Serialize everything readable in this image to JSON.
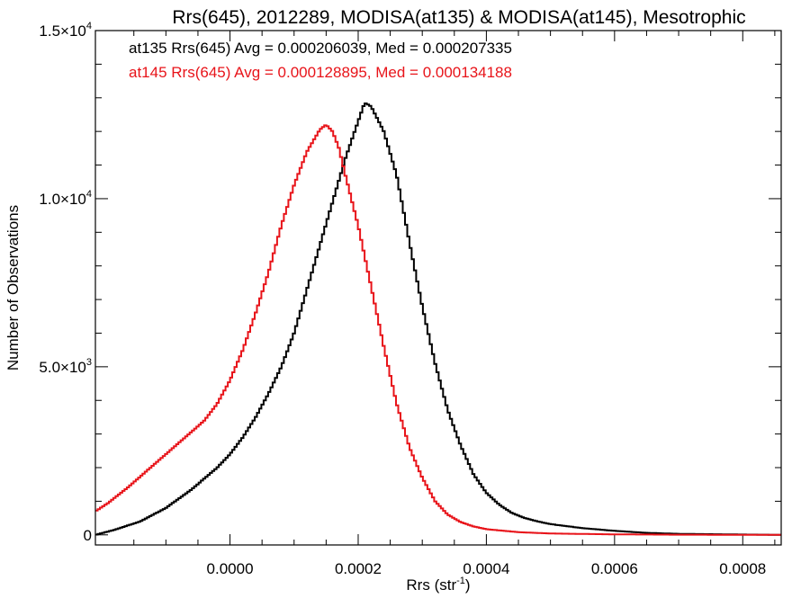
{
  "chart_data": {
    "type": "histogram",
    "title": "Rrs(645), 2012289, MODISA(at135) & MODISA(at145), Mesotrophic",
    "xlabel": "Rrs (str",
    "xlabel_sup": "-1",
    "xlabel_close": ")",
    "ylabel": "Number of Observations",
    "xlim": [
      -0.00021,
      0.00086
    ],
    "ylim": [
      -300,
      15000
    ],
    "x_ticks": [
      {
        "value": 0.0,
        "label": "0.0000"
      },
      {
        "value": 0.0002,
        "label": "0.0002"
      },
      {
        "value": 0.0004,
        "label": "0.0004"
      },
      {
        "value": 0.0006,
        "label": "0.0006"
      },
      {
        "value": 0.0008,
        "label": "0.0008"
      }
    ],
    "y_ticks": [
      {
        "value": 0,
        "mant": "0",
        "exp": ""
      },
      {
        "value": 5000,
        "mant": "5.0×10",
        "exp": "3"
      },
      {
        "value": 10000,
        "mant": "1.0×10",
        "exp": "4"
      },
      {
        "value": 15000,
        "mant": "1.5×10",
        "exp": "4"
      }
    ],
    "legend": [
      {
        "text": "at135 Rrs(645) Avg = 0.000206039, Med = 0.000207335",
        "color": "#000000"
      },
      {
        "text": "at145 Rrs(645) Avg = 0.000128895, Med = 0.000134188",
        "color": "#e8141a"
      }
    ],
    "series": [
      {
        "name": "at135",
        "color": "#000000",
        "points": [
          [
            -0.00021,
            0
          ],
          [
            -0.00018,
            150
          ],
          [
            -0.00014,
            400
          ],
          [
            -0.0001,
            800
          ],
          [
            -6e-05,
            1350
          ],
          [
            -2e-05,
            2000
          ],
          [
            0.0,
            2400
          ],
          [
            2e-05,
            2900
          ],
          [
            4e-05,
            3500
          ],
          [
            6e-05,
            4200
          ],
          [
            8e-05,
            5000
          ],
          [
            0.0001,
            6000
          ],
          [
            0.00012,
            7300
          ],
          [
            0.00014,
            8600
          ],
          [
            0.00016,
            9900
          ],
          [
            0.00018,
            11200
          ],
          [
            0.0002,
            12300
          ],
          [
            0.00021,
            12850
          ],
          [
            0.00022,
            12750
          ],
          [
            0.00024,
            12000
          ],
          [
            0.00026,
            10700
          ],
          [
            0.00028,
            8700
          ],
          [
            0.0003,
            6800
          ],
          [
            0.00032,
            5100
          ],
          [
            0.00034,
            3700
          ],
          [
            0.00036,
            2650
          ],
          [
            0.00038,
            1800
          ],
          [
            0.0004,
            1250
          ],
          [
            0.00042,
            900
          ],
          [
            0.00044,
            650
          ],
          [
            0.00046,
            500
          ],
          [
            0.00048,
            400
          ],
          [
            0.0005,
            320
          ],
          [
            0.00055,
            200
          ],
          [
            0.0006,
            120
          ],
          [
            0.00065,
            60
          ],
          [
            0.0007,
            30
          ],
          [
            0.0008,
            10
          ],
          [
            0.00086,
            0
          ]
        ]
      },
      {
        "name": "at145",
        "color": "#e8141a",
        "points": [
          [
            -0.00021,
            700
          ],
          [
            -0.00019,
            950
          ],
          [
            -0.00016,
            1400
          ],
          [
            -0.00013,
            1900
          ],
          [
            -0.0001,
            2400
          ],
          [
            -7e-05,
            2900
          ],
          [
            -4e-05,
            3400
          ],
          [
            -2e-05,
            3900
          ],
          [
            0.0,
            4600
          ],
          [
            2e-05,
            5500
          ],
          [
            4e-05,
            6600
          ],
          [
            6e-05,
            7800
          ],
          [
            8e-05,
            9200
          ],
          [
            0.0001,
            10400
          ],
          [
            0.00012,
            11400
          ],
          [
            0.00014,
            12050
          ],
          [
            0.00015,
            12200
          ],
          [
            0.00016,
            12000
          ],
          [
            0.00017,
            11500
          ],
          [
            0.00018,
            10700
          ],
          [
            0.0002,
            9200
          ],
          [
            0.00022,
            7400
          ],
          [
            0.00024,
            5600
          ],
          [
            0.00026,
            3900
          ],
          [
            0.00028,
            2600
          ],
          [
            0.0003,
            1700
          ],
          [
            0.00032,
            1000
          ],
          [
            0.00034,
            600
          ],
          [
            0.00036,
            380
          ],
          [
            0.00038,
            250
          ],
          [
            0.0004,
            170
          ],
          [
            0.00045,
            80
          ],
          [
            0.0005,
            40
          ],
          [
            0.0006,
            15
          ],
          [
            0.0007,
            5
          ],
          [
            0.00086,
            0
          ]
        ]
      }
    ]
  }
}
